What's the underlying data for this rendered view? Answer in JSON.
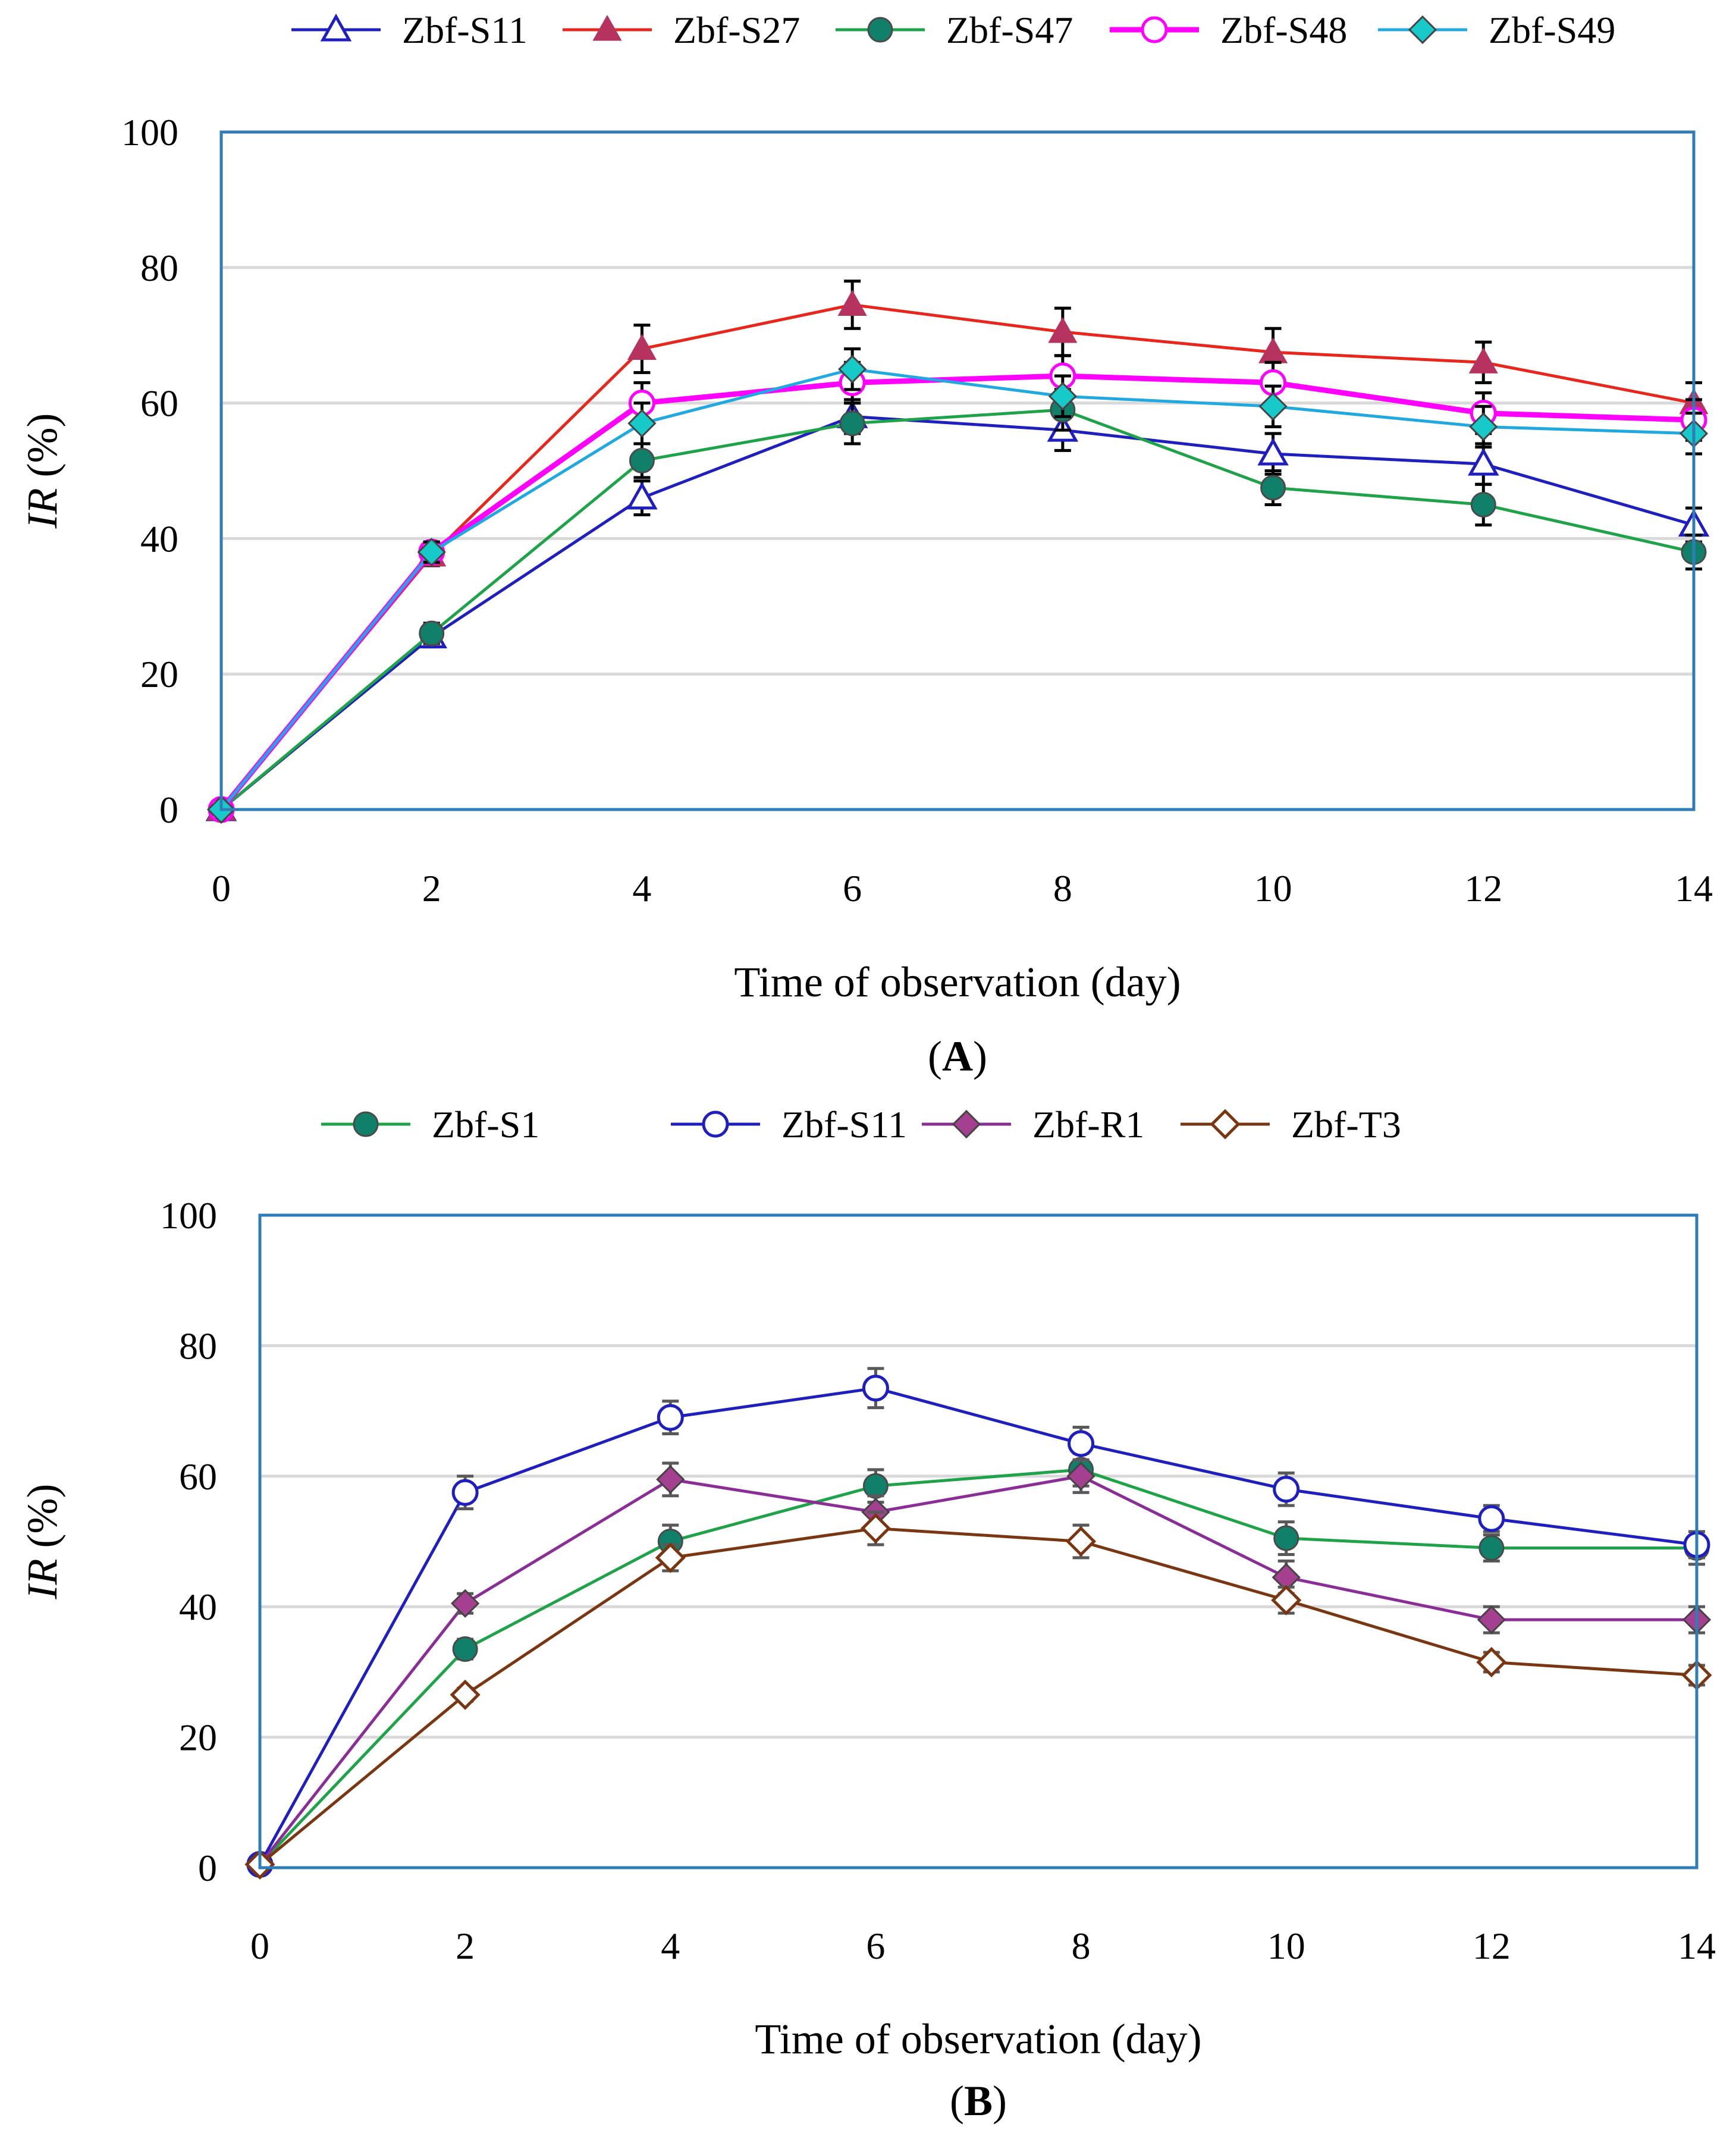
{
  "chart_data": [
    {
      "type": "line",
      "panel_label": "A",
      "xlabel": "Time of observation (day)",
      "ylabel": "IR (%)",
      "ylabel_italic": "IR",
      "ylabel_rest": " (%)",
      "ylim": [
        0,
        100
      ],
      "xlim": [
        0,
        14
      ],
      "xticks": [
        0,
        2,
        4,
        6,
        8,
        10,
        12,
        14
      ],
      "yticks": [
        0,
        20,
        40,
        60,
        80,
        100
      ],
      "grid": true,
      "legend_position": "top",
      "x": [
        0,
        2,
        4,
        6,
        8,
        10,
        12,
        14
      ],
      "series": [
        {
          "name": "Zbf-S11",
          "color": "#1f1fbf",
          "marker": "triangle-open",
          "values": [
            0,
            25.5,
            46,
            58,
            56,
            52.5,
            51,
            42
          ],
          "errors": [
            0,
            1.5,
            2.5,
            2.5,
            3,
            3,
            3,
            2.5
          ]
        },
        {
          "name": "Zbf-S27",
          "color": "#e8261c",
          "marker_color": "#b5335e",
          "marker": "triangle-filled",
          "values": [
            0,
            37.5,
            68,
            74.5,
            70.5,
            67.5,
            66,
            60
          ],
          "errors": [
            0,
            1.5,
            3.5,
            3.5,
            3.5,
            3.5,
            3,
            3
          ]
        },
        {
          "name": "Zbf-S47",
          "color": "#1fa349",
          "marker_color": "#11806b",
          "marker": "circle-filled",
          "values": [
            0,
            26,
            51.5,
            57,
            59,
            47.5,
            45,
            38
          ],
          "errors": [
            0,
            1.5,
            2.5,
            3,
            3,
            2.5,
            3,
            2.5
          ]
        },
        {
          "name": "Zbf-S48",
          "color": "#ff00ff",
          "marker": "circle-open",
          "values": [
            0,
            38,
            60,
            63,
            64,
            63,
            58.5,
            57.5
          ],
          "errors": [
            0,
            1.5,
            3,
            3,
            3,
            3,
            3,
            3
          ]
        },
        {
          "name": "Zbf-S49",
          "color": "#1fa9e0",
          "marker_color": "#17c9c9",
          "marker": "diamond-filled",
          "values": [
            0,
            38,
            57,
            65,
            61,
            59.5,
            56.5,
            55.5
          ],
          "errors": [
            0,
            1.5,
            3,
            3,
            3,
            3,
            3,
            3
          ]
        }
      ]
    },
    {
      "type": "line",
      "panel_label": "B",
      "xlabel": "Time of observation (day)",
      "ylabel": "IR (%)",
      "ylabel_italic": "IR",
      "ylabel_rest": " (%)",
      "ylim": [
        0,
        100
      ],
      "xlim": [
        0,
        14
      ],
      "xticks": [
        0,
        2,
        4,
        6,
        8,
        10,
        12,
        14
      ],
      "yticks": [
        0,
        20,
        40,
        60,
        80,
        100
      ],
      "grid": true,
      "legend_position": "top",
      "x": [
        0,
        2,
        4,
        6,
        8,
        10,
        12,
        14
      ],
      "series": [
        {
          "name": "Zbf-S1",
          "color": "#1fa349",
          "marker_color": "#11806b",
          "marker": "circle-filled",
          "values": [
            0.5,
            33.5,
            50,
            58.5,
            61,
            50.5,
            49,
            49
          ],
          "errors": [
            0,
            1.5,
            2.5,
            2.5,
            2.5,
            2.5,
            2,
            2.5
          ]
        },
        {
          "name": "Zbf-S11",
          "color": "#1f1fbf",
          "marker": "circle-open",
          "values": [
            0.5,
            57.5,
            69,
            73.5,
            65,
            58,
            53.5,
            49.5
          ],
          "errors": [
            0,
            2.5,
            2.5,
            3,
            2.5,
            2.5,
            2,
            2
          ]
        },
        {
          "name": "Zbf-R1",
          "color": "#8b2d97",
          "marker_color": "#a4408f",
          "marker": "diamond-filled",
          "values": [
            0.5,
            40.5,
            59.5,
            54.5,
            60,
            44.5,
            38,
            38
          ],
          "errors": [
            0,
            1.5,
            2.5,
            2.5,
            2.5,
            2.5,
            2,
            2
          ]
        },
        {
          "name": "Zbf-T3",
          "color": "#7a3610",
          "marker": "diamond-open",
          "values": [
            0.5,
            26.5,
            47.5,
            52,
            50,
            41,
            31.5,
            29.5
          ],
          "errors": [
            0,
            1,
            2,
            2.5,
            2.5,
            2,
            1.5,
            1.5
          ]
        }
      ]
    }
  ]
}
